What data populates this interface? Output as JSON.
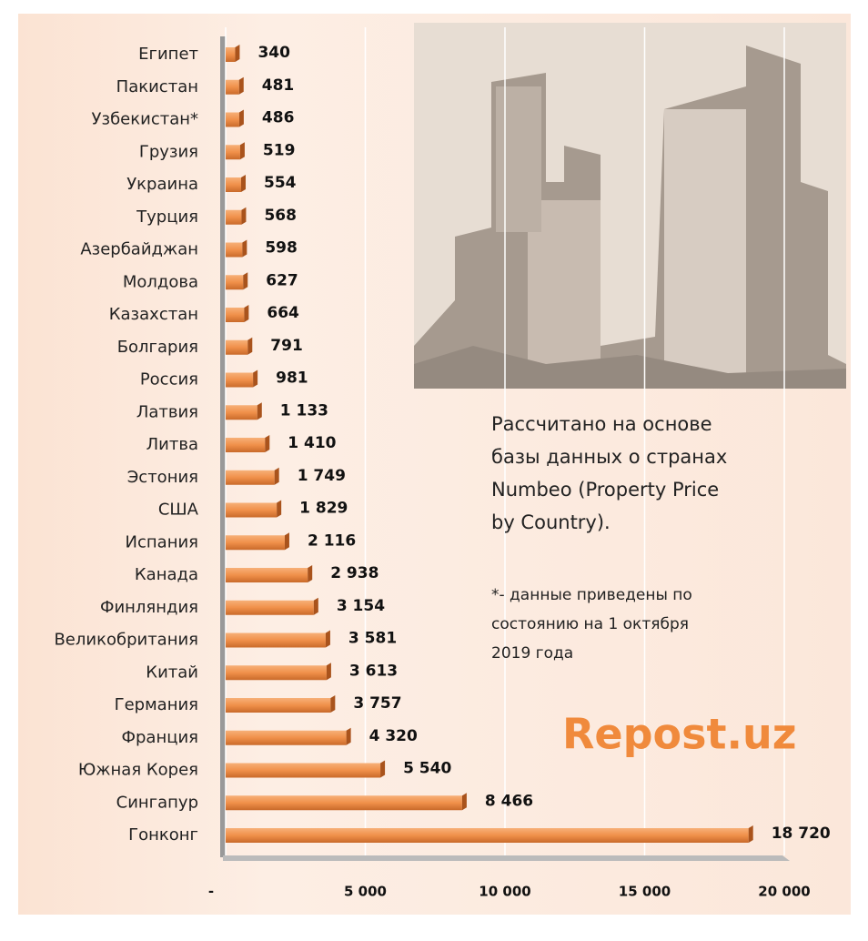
{
  "chart_data": {
    "type": "bar",
    "orientation": "horizontal",
    "categories": [
      "Египет",
      "Пакистан",
      "Узбекистан*",
      "Грузия",
      "Украина",
      "Турция",
      "Азербайджан",
      "Молдова",
      "Казахстан",
      "Болгария",
      "Россия",
      "Латвия",
      "Литва",
      "Эстония",
      "США",
      "Испания",
      "Канада",
      "Финляндия",
      "Великобритания",
      "Китай",
      "Германия",
      "Франция",
      "Южная Корея",
      "Сингапур",
      "Гонконг"
    ],
    "values": [
      340,
      481,
      486,
      519,
      554,
      568,
      598,
      627,
      664,
      791,
      981,
      1133,
      1410,
      1749,
      1829,
      2116,
      2938,
      3154,
      3581,
      3613,
      3757,
      4320,
      5540,
      8466,
      18720
    ],
    "value_labels": [
      "340",
      "481",
      "486",
      "519",
      "554",
      "568",
      "598",
      "627",
      "664",
      "791",
      "981",
      "1 133",
      "1 410",
      "1 749",
      "1 829",
      "2 116",
      "2 938",
      "3 154",
      "3 581",
      "3 613",
      "3 757",
      "4 320",
      "5 540",
      "8 466",
      "18 720"
    ],
    "color": "#f0904a",
    "xlim": [
      0,
      20000
    ],
    "xticks": [
      {
        "value": 0,
        "label": "-"
      },
      {
        "value": 5000,
        "label": "5 000"
      },
      {
        "value": 10000,
        "label": "10 000"
      },
      {
        "value": 15000,
        "label": "15 000"
      },
      {
        "value": 20000,
        "label": "20 000"
      }
    ],
    "grid": true,
    "source_lines": [
      "Рассчитано на основе",
      "базы данных о странах",
      "Numbeo (Property Price",
      "by Country)."
    ],
    "note_lines": [
      "*- данные приведены по",
      "состоянию на 1 октября",
      "2019 года"
    ],
    "watermark": "Repost.uz"
  }
}
